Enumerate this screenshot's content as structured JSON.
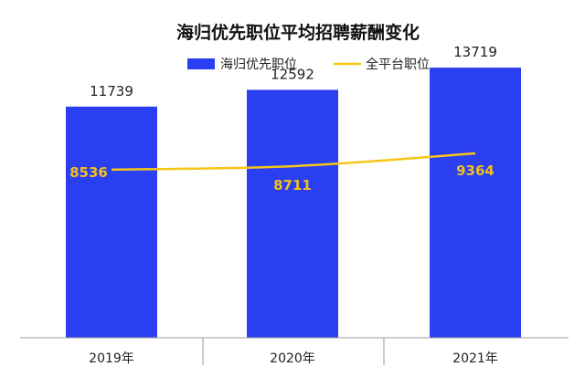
{
  "chart_data": {
    "type": "bar",
    "title": "海归优先职位平均招聘薪酬变化",
    "categories": [
      "2019年",
      "2020年",
      "2021年"
    ],
    "series": [
      {
        "name": "海归优先职位",
        "type": "bar",
        "color": "#2b3ff2",
        "values": [
          11739,
          12592,
          13719
        ]
      },
      {
        "name": "全平台职位",
        "type": "line",
        "color": "#f5c518",
        "values": [
          8536,
          8711,
          9364
        ]
      }
    ],
    "ylim": [
      0,
      15300
    ],
    "grid": false,
    "legend_position": "top"
  }
}
